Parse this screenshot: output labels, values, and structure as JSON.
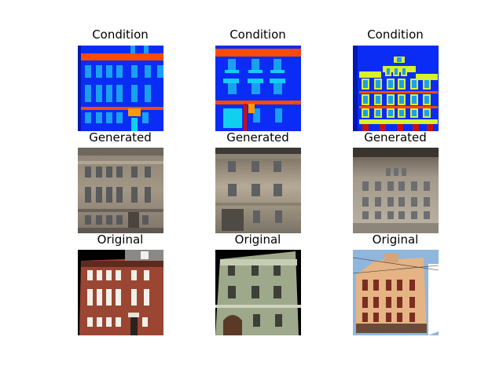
{
  "figure": {
    "rows": [
      {
        "panels": [
          {
            "title": "Condition",
            "image": "facade-label-map-1"
          },
          {
            "title": "Condition",
            "image": "facade-label-map-2"
          },
          {
            "title": "Condition",
            "image": "facade-label-map-3"
          }
        ]
      },
      {
        "panels": [
          {
            "title": "Generated",
            "image": "generated-facade-1"
          },
          {
            "title": "Generated",
            "image": "generated-facade-2"
          },
          {
            "title": "Generated",
            "image": "generated-facade-3"
          }
        ]
      },
      {
        "panels": [
          {
            "title": "Original",
            "image": "original-facade-photo-1"
          },
          {
            "title": "Original",
            "image": "original-facade-photo-2"
          },
          {
            "title": "Original",
            "image": "original-facade-photo-3"
          }
        ]
      }
    ]
  },
  "colors": {
    "label_background": "#0a2cf5",
    "label_window": "#19a0f0",
    "label_cornice": "#ff4a00",
    "label_door": "#ff9a00",
    "label_shop": "#10d0f0",
    "label_balcony": "#d8f030",
    "label_pillar": "#c81010"
  }
}
